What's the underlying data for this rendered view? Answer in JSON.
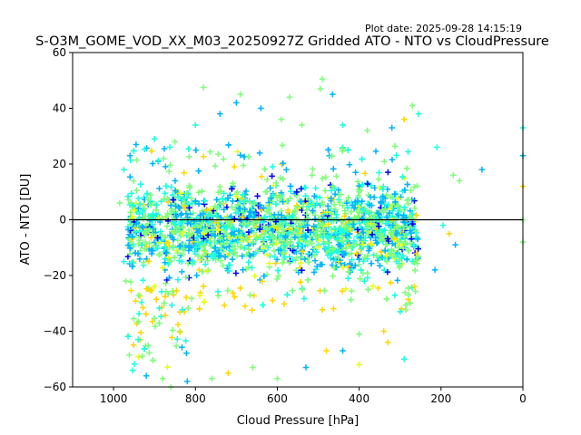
{
  "header": {
    "plot_date": "Plot date: 2025-09-28 14:15:19",
    "title": "S-O3M_GOME_VOD_XX_M03_20250927Z Gridded ATO - NTO vs CloudPressure"
  },
  "chart_data": {
    "type": "scatter",
    "title": "S-O3M_GOME_VOD_XX_M03_20250927Z Gridded ATO - NTO vs CloudPressure",
    "xlabel": "Cloud Pressure [hPa]",
    "ylabel": "ATO - NTO [DU]",
    "xlim": [
      1100,
      0
    ],
    "ylim": [
      -60,
      60
    ],
    "x_inverted": true,
    "x_ticks": [
      1000,
      800,
      600,
      400,
      200,
      0
    ],
    "y_ticks": [
      -60,
      -40,
      -20,
      0,
      20,
      40,
      60
    ],
    "x_tick_labels": [
      "1000",
      "800",
      "600",
      "400",
      "200",
      "0"
    ],
    "y_tick_labels": [
      "−60",
      "−40",
      "−20",
      "0",
      "20",
      "40",
      "60"
    ],
    "marker": "+",
    "reference_line_y": 0,
    "grid": false,
    "legend": "none",
    "colors": [
      "#0000ff",
      "#00b4ff",
      "#19ffe0",
      "#7dff7a",
      "#e4ff14",
      "#ffd700"
    ],
    "points_note": "dense cloud of many thousands of points",
    "cluster": {
      "x_range": [
        965,
        255
      ],
      "core_y_mean": -3,
      "core_y_spread": 12,
      "y_min": -60,
      "y_max": 51
    },
    "points": [
      [
        780,
        47.5
      ],
      [
        690,
        45
      ],
      [
        570,
        44
      ],
      [
        495,
        47
      ],
      [
        490,
        50.5
      ],
      [
        465,
        45
      ],
      [
        440,
        34
      ],
      [
        270,
        41
      ],
      [
        255,
        38
      ],
      [
        210,
        26
      ],
      [
        170,
        16
      ],
      [
        155,
        14
      ],
      [
        100,
        18
      ],
      [
        0,
        33
      ],
      [
        0,
        23
      ],
      [
        0,
        12
      ],
      [
        0,
        0
      ],
      [
        0,
        -8
      ],
      [
        195,
        -2
      ],
      [
        180,
        -5
      ],
      [
        165,
        -9
      ],
      [
        215,
        -18
      ],
      [
        265,
        -24
      ],
      [
        280,
        -27
      ],
      [
        300,
        -33
      ],
      [
        340,
        -40
      ],
      [
        400,
        -41
      ],
      [
        400,
        -52
      ],
      [
        290,
        -50
      ],
      [
        330,
        -44
      ],
      [
        940,
        -43
      ],
      [
        930,
        -49
      ],
      [
        920,
        -56
      ],
      [
        880,
        -57
      ],
      [
        860,
        -60
      ],
      [
        820,
        -58
      ],
      [
        760,
        -57
      ],
      [
        720,
        -55
      ],
      [
        660,
        -53
      ],
      [
        600,
        -57
      ],
      [
        530,
        -53
      ],
      [
        480,
        -47
      ],
      [
        440,
        -47
      ],
      [
        970,
        -22
      ],
      [
        975,
        -15
      ],
      [
        985,
        6
      ],
      [
        975,
        18
      ],
      [
        960,
        23
      ],
      [
        945,
        27
      ],
      [
        900,
        29
      ],
      [
        850,
        28
      ],
      [
        800,
        34
      ],
      [
        740,
        38
      ],
      [
        700,
        42
      ],
      [
        640,
        40
      ],
      [
        590,
        36
      ],
      [
        540,
        34
      ],
      [
        380,
        32
      ],
      [
        320,
        33
      ],
      [
        290,
        36
      ]
    ]
  }
}
